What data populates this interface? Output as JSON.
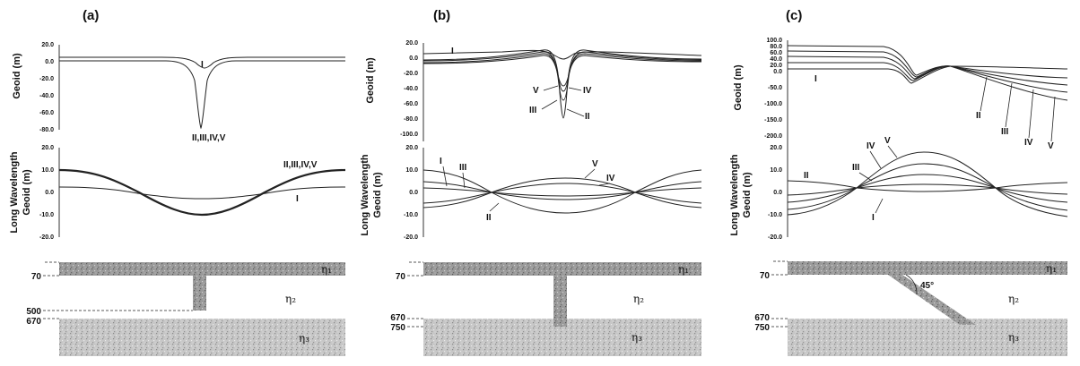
{
  "panels": [
    {
      "label": "(a)",
      "geoid_ylabel": "Geoid (m)",
      "geoid_ticks": [
        "20.0",
        "0.0",
        "-20.0",
        "-40.0",
        "-60.0",
        "-80.0"
      ],
      "long_ylabel_1": "Long Wavelength",
      "long_ylabel_2": "Geoid (m)",
      "long_ticks": [
        "20.0",
        "10.0",
        "0.0",
        "-10.0",
        "-20.0"
      ],
      "geoid_labels": [
        "I",
        "II,III,IV,V"
      ],
      "long_labels": [
        "II,III,IV,V",
        "I"
      ],
      "model_depths": [
        "70",
        "500",
        "670"
      ],
      "eta_upper": "η₁",
      "eta_mid": "η₂",
      "eta_lower": "η₃"
    },
    {
      "label": "(b)",
      "geoid_ylabel": "Geoid (m)",
      "geoid_ticks": [
        "20.0",
        "0.0",
        "-20.0",
        "-40.0",
        "-60.0",
        "-80.0",
        "-100.0"
      ],
      "long_ylabel_1": "Long Wavelength",
      "long_ylabel_2": "Geoid (m)",
      "long_ticks": [
        "20.0",
        "10.0",
        "0.0",
        "-10.0",
        "-20.0"
      ],
      "geoid_labels": [
        "I",
        "V",
        "IV",
        "III",
        "II"
      ],
      "long_labels": [
        "I",
        "III",
        "V",
        "IV",
        "II"
      ],
      "model_depths": [
        "70",
        "670",
        "750"
      ],
      "eta_upper": "η₁",
      "eta_mid": "η₂",
      "eta_lower": "η₃"
    },
    {
      "label": "(c)",
      "geoid_ylabel": "Geoid (m)",
      "geoid_ticks": [
        "100.0",
        "80.0",
        "60.0",
        "40.0",
        "20.0",
        "0.0",
        "-50.0",
        "-100.0",
        "-150.0",
        "-200.0"
      ],
      "long_ylabel_1": "Long Wavelength",
      "long_ylabel_2": "Geoid (m)",
      "long_ticks": [
        "20.0",
        "10.0",
        "0.0",
        "-10.0",
        "-20.0"
      ],
      "geoid_labels": [
        "I",
        "II",
        "III",
        "IV",
        "V"
      ],
      "long_labels": [
        "IV",
        "V",
        "III",
        "II",
        "I"
      ],
      "model_depths": [
        "70",
        "670",
        "750"
      ],
      "dip_angle": "45°",
      "eta_upper": "η₁",
      "eta_mid": "η₂",
      "eta_lower": "η₃"
    }
  ]
}
